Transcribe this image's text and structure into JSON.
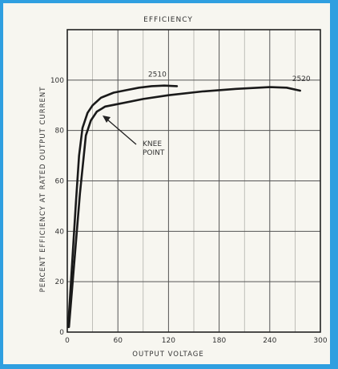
{
  "chart_data": {
    "type": "line",
    "title": "EFFICIENCY",
    "xlabel": "OUTPUT VOLTAGE",
    "ylabel": "PERCENT EFFICIENCY AT RATED OUTPUT CURRENT",
    "xlim": [
      0,
      300
    ],
    "ylim": [
      0,
      120
    ],
    "x_ticks": [
      "0",
      "60",
      "120",
      "180",
      "240",
      "300"
    ],
    "y_ticks": [
      "0",
      "20",
      "40",
      "60",
      "80",
      "100"
    ],
    "grid": true,
    "series": [
      {
        "name": "2510",
        "x": [
          1,
          10,
          14,
          18,
          24,
          30,
          40,
          55,
          70,
          85,
          100,
          115,
          130
        ],
        "y": [
          2,
          50,
          70,
          81,
          87,
          90,
          93,
          95,
          96,
          97,
          97.6,
          97.8,
          97.6
        ]
      },
      {
        "name": "2520",
        "x": [
          2,
          15,
          22,
          28,
          35,
          45,
          60,
          90,
          120,
          160,
          200,
          240,
          260,
          276
        ],
        "y": [
          2,
          55,
          78,
          84,
          87.5,
          89.5,
          90.5,
          92.5,
          94,
          95.5,
          96.5,
          97.2,
          97,
          95.8
        ]
      }
    ],
    "annotations": [
      {
        "text": "KNEE",
        "x": 73,
        "y": 85
      },
      {
        "text": "POINT",
        "x": 73,
        "y": 80
      }
    ]
  }
}
